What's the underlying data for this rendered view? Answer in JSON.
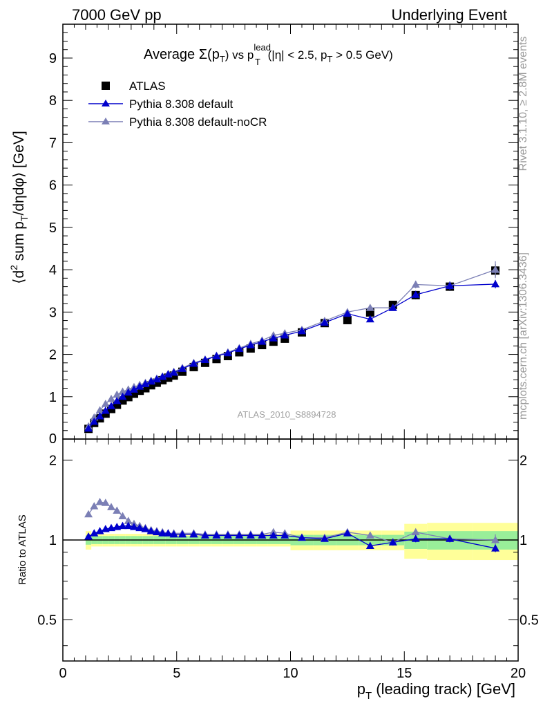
{
  "header": {
    "left": "7000 GeV pp",
    "right": "Underlying Event"
  },
  "side_labels": {
    "top": "Rivet 3.1.10, ≥ 2.8M events",
    "bottom": "mcplots.cern.ch [arXiv:1306.3436]"
  },
  "analysis_id": "ATLAS_2010_S8894728",
  "colors": {
    "data": "#000000",
    "pythia_default": "#0000cc",
    "pythia_nocr": "#7b7fb5",
    "band_inner": "#99ee99",
    "band_outer": "#ffff99"
  },
  "chart_data": [
    {
      "type": "scatter",
      "title": "Average Σ(pT) vs pT lead (|η| < 2.5, pT > 0.5 GeV)",
      "title_parts": {
        "prefix": "Average ",
        "sigma": "Σ(p",
        "sub1": "T",
        "mid": ") vs p",
        "sup": "lead",
        "sub2": "T",
        "tail1": " (|η| < 2.5, p",
        "sub3": "T",
        "tail2": " > 0.5 GeV)"
      },
      "ylabel": "⟨d² sum pT/dηdφ⟩ [GeV]",
      "ylabel_parts": {
        "a": "⟨d",
        "sup": "2",
        "b": " sum p",
        "sub": "T",
        "c": "/dηdφ⟩ [GeV]"
      },
      "xlim": [
        0,
        20
      ],
      "ylim": [
        0,
        9.8
      ],
      "y_ticks": [
        "0",
        "1",
        "2",
        "3",
        "4",
        "5",
        "6",
        "7",
        "8",
        "9"
      ],
      "legend_position": "top-left",
      "series": [
        {
          "name": "ATLAS",
          "x": [
            1.125,
            1.375,
            1.625,
            1.875,
            2.125,
            2.375,
            2.625,
            2.875,
            3.125,
            3.375,
            3.625,
            3.875,
            4.125,
            4.375,
            4.625,
            4.875,
            5.25,
            5.75,
            6.25,
            6.75,
            7.25,
            7.75,
            8.25,
            8.75,
            9.25,
            9.75,
            10.5,
            11.5,
            12.5,
            13.5,
            14.5,
            15.5,
            17.0,
            19.0
          ],
          "y": [
            0.24,
            0.38,
            0.49,
            0.6,
            0.71,
            0.81,
            0.91,
            0.99,
            1.07,
            1.14,
            1.2,
            1.27,
            1.33,
            1.39,
            1.45,
            1.5,
            1.59,
            1.7,
            1.8,
            1.89,
            1.96,
            2.05,
            2.14,
            2.22,
            2.3,
            2.37,
            2.52,
            2.74,
            2.81,
            2.99,
            3.17,
            3.4,
            3.6,
            3.98
          ],
          "yerr": [
            0.01,
            0.01,
            0.01,
            0.01,
            0.01,
            0.01,
            0.01,
            0.01,
            0.01,
            0.01,
            0.01,
            0.01,
            0.01,
            0.01,
            0.01,
            0.01,
            0.02,
            0.02,
            0.02,
            0.02,
            0.03,
            0.03,
            0.03,
            0.03,
            0.04,
            0.04,
            0.04,
            0.05,
            0.06,
            0.07,
            0.08,
            0.1,
            0.1,
            0.15
          ]
        },
        {
          "name": "Pythia 8.308 default",
          "x": [
            1.125,
            1.375,
            1.625,
            1.875,
            2.125,
            2.375,
            2.625,
            2.875,
            3.125,
            3.375,
            3.625,
            3.875,
            4.125,
            4.375,
            4.625,
            4.875,
            5.25,
            5.75,
            6.25,
            6.75,
            7.25,
            7.75,
            8.25,
            8.75,
            9.25,
            9.75,
            10.5,
            11.5,
            12.5,
            13.5,
            14.5,
            15.5,
            17.0,
            19.0
          ],
          "y": [
            0.25,
            0.41,
            0.54,
            0.67,
            0.78,
            0.9,
            1.0,
            1.1,
            1.17,
            1.24,
            1.3,
            1.36,
            1.41,
            1.47,
            1.53,
            1.57,
            1.66,
            1.78,
            1.87,
            1.96,
            2.03,
            2.13,
            2.22,
            2.3,
            2.38,
            2.45,
            2.55,
            2.75,
            2.96,
            2.83,
            3.1,
            3.41,
            3.62,
            3.66
          ],
          "yerr": [
            0.01,
            0.01,
            0.01,
            0.01,
            0.01,
            0.01,
            0.01,
            0.01,
            0.01,
            0.01,
            0.01,
            0.01,
            0.01,
            0.01,
            0.01,
            0.01,
            0.01,
            0.01,
            0.02,
            0.02,
            0.02,
            0.02,
            0.02,
            0.03,
            0.03,
            0.03,
            0.03,
            0.04,
            0.05,
            0.05,
            0.06,
            0.08,
            0.1,
            0.1
          ]
        },
        {
          "name": "Pythia 8.308 default-noCR",
          "x": [
            1.125,
            1.375,
            1.625,
            1.875,
            2.125,
            2.375,
            2.625,
            2.875,
            3.125,
            3.375,
            3.625,
            3.875,
            4.125,
            4.375,
            4.625,
            4.875,
            5.25,
            5.75,
            6.25,
            6.75,
            7.25,
            7.75,
            8.25,
            8.75,
            9.25,
            9.75,
            10.5,
            11.5,
            12.5,
            13.5,
            14.5,
            15.5,
            17.0,
            19.0
          ],
          "y": [
            0.3,
            0.51,
            0.68,
            0.83,
            0.95,
            1.05,
            1.12,
            1.17,
            1.23,
            1.28,
            1.33,
            1.38,
            1.43,
            1.48,
            1.54,
            1.59,
            1.68,
            1.8,
            1.88,
            1.97,
            2.05,
            2.15,
            2.25,
            2.33,
            2.45,
            2.5,
            2.58,
            2.79,
            3.0,
            3.1,
            3.1,
            3.65,
            3.62,
            4.0
          ],
          "yerr": [
            0.01,
            0.01,
            0.01,
            0.01,
            0.01,
            0.01,
            0.01,
            0.01,
            0.01,
            0.01,
            0.01,
            0.01,
            0.01,
            0.01,
            0.01,
            0.01,
            0.01,
            0.01,
            0.02,
            0.02,
            0.02,
            0.02,
            0.02,
            0.03,
            0.03,
            0.03,
            0.03,
            0.04,
            0.05,
            0.05,
            0.06,
            0.09,
            0.1,
            0.2
          ]
        }
      ]
    },
    {
      "type": "scatter",
      "ylabel": "Ratio to ATLAS",
      "xlabel": "pT (leading track) [GeV]",
      "xlabel_parts": {
        "a": "p",
        "sub": "T",
        "b": " (leading track) [GeV]"
      },
      "xlim": [
        0,
        20
      ],
      "ylim": [
        0.35,
        2.4
      ],
      "y_scale": "log",
      "x_ticks": [
        "0",
        "5",
        "10",
        "15",
        "20"
      ],
      "y_ticks": [
        "0.5",
        "1",
        "2"
      ],
      "reference_line": 1,
      "bands": {
        "x_edges": [
          1.0,
          1.25,
          1.5,
          1.75,
          2.0,
          2.25,
          2.5,
          2.75,
          3.0,
          3.25,
          3.5,
          3.75,
          4.0,
          4.25,
          4.5,
          4.75,
          5.0,
          5.5,
          6.0,
          6.5,
          7.0,
          7.5,
          8.0,
          8.5,
          9.0,
          9.5,
          10.0,
          11.0,
          12.0,
          13.0,
          14.0,
          15.0,
          16.0,
          18.0,
          20.0
        ],
        "inner_halfwidth": [
          0.04,
          0.035,
          0.035,
          0.035,
          0.035,
          0.035,
          0.035,
          0.035,
          0.035,
          0.035,
          0.035,
          0.035,
          0.035,
          0.035,
          0.035,
          0.035,
          0.035,
          0.035,
          0.035,
          0.035,
          0.035,
          0.035,
          0.035,
          0.035,
          0.035,
          0.035,
          0.045,
          0.045,
          0.045,
          0.045,
          0.045,
          0.075,
          0.08,
          0.08
        ],
        "outer_halfwidth": [
          0.08,
          0.055,
          0.055,
          0.055,
          0.055,
          0.055,
          0.055,
          0.055,
          0.055,
          0.055,
          0.055,
          0.055,
          0.055,
          0.055,
          0.055,
          0.055,
          0.055,
          0.055,
          0.055,
          0.055,
          0.055,
          0.055,
          0.055,
          0.055,
          0.055,
          0.055,
          0.085,
          0.085,
          0.085,
          0.085,
          0.085,
          0.15,
          0.16,
          0.16
        ]
      },
      "series": [
        {
          "name": "Pythia 8.308 default",
          "x": [
            1.125,
            1.375,
            1.625,
            1.875,
            2.125,
            2.375,
            2.625,
            2.875,
            3.125,
            3.375,
            3.625,
            3.875,
            4.125,
            4.375,
            4.625,
            4.875,
            5.25,
            5.75,
            6.25,
            6.75,
            7.25,
            7.75,
            8.25,
            8.75,
            9.25,
            9.75,
            10.5,
            11.5,
            12.5,
            13.5,
            14.5,
            15.5,
            17.0,
            19.0
          ],
          "y": [
            1.03,
            1.06,
            1.08,
            1.1,
            1.11,
            1.12,
            1.13,
            1.13,
            1.12,
            1.11,
            1.1,
            1.08,
            1.07,
            1.06,
            1.06,
            1.05,
            1.05,
            1.05,
            1.04,
            1.04,
            1.04,
            1.04,
            1.04,
            1.04,
            1.04,
            1.04,
            1.02,
            1.01,
            1.06,
            0.95,
            0.98,
            1.01,
            1.01,
            0.93
          ],
          "yerr": [
            0.01,
            0.01,
            0.01,
            0.01,
            0.01,
            0.01,
            0.01,
            0.01,
            0.01,
            0.01,
            0.01,
            0.01,
            0.01,
            0.01,
            0.01,
            0.01,
            0.01,
            0.01,
            0.01,
            0.01,
            0.01,
            0.01,
            0.01,
            0.01,
            0.01,
            0.01,
            0.01,
            0.01,
            0.02,
            0.02,
            0.02,
            0.03,
            0.03,
            0.03
          ]
        },
        {
          "name": "Pythia 8.308 default-noCR",
          "x": [
            1.125,
            1.375,
            1.625,
            1.875,
            2.125,
            2.375,
            2.625,
            2.875,
            3.125,
            3.375,
            3.625,
            3.875,
            4.125,
            4.375,
            4.625,
            4.875,
            5.25,
            5.75,
            6.25,
            6.75,
            7.25,
            7.75,
            8.25,
            8.75,
            9.25,
            9.75,
            10.5,
            11.5,
            12.5,
            13.5,
            14.5,
            15.5,
            17.0,
            19.0
          ],
          "y": [
            1.25,
            1.34,
            1.39,
            1.38,
            1.33,
            1.29,
            1.23,
            1.18,
            1.15,
            1.13,
            1.11,
            1.09,
            1.08,
            1.07,
            1.06,
            1.06,
            1.06,
            1.06,
            1.05,
            1.05,
            1.05,
            1.05,
            1.05,
            1.05,
            1.07,
            1.06,
            1.02,
            1.02,
            1.07,
            1.04,
            0.98,
            1.07,
            1.01,
            1.0
          ],
          "yerr": [
            0.01,
            0.01,
            0.01,
            0.01,
            0.01,
            0.01,
            0.01,
            0.01,
            0.01,
            0.01,
            0.01,
            0.01,
            0.01,
            0.01,
            0.01,
            0.01,
            0.01,
            0.01,
            0.01,
            0.01,
            0.01,
            0.01,
            0.01,
            0.01,
            0.01,
            0.01,
            0.01,
            0.01,
            0.02,
            0.02,
            0.03,
            0.03,
            0.03,
            0.05
          ]
        }
      ]
    }
  ]
}
